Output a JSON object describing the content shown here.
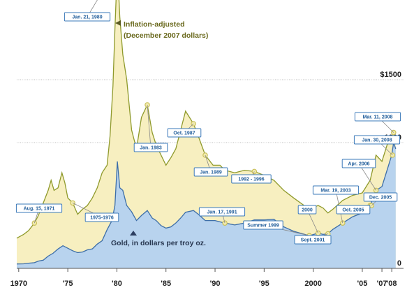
{
  "chart_data": {
    "type": "area",
    "x_ticks": [
      "1970",
      "'75",
      "'80",
      "'85",
      "'90",
      "'95",
      "2000",
      "'05",
      "'07",
      "'08"
    ],
    "y_ticks": [
      "$1500",
      "1000",
      "0"
    ],
    "ylim": [
      0,
      2000
    ],
    "xlim": [
      1969.8,
      2009.2
    ],
    "grid": true,
    "series": [
      {
        "name": "Inflation-adjusted\n(December 2007 dollars)",
        "color": "#8f9a2c",
        "fill": "#f7efc0",
        "x": [
          1969.8,
          1970.5,
          1971.0,
          1971.6,
          1972.0,
          1972.5,
          1973.0,
          1973.3,
          1973.6,
          1974.0,
          1974.4,
          1974.7,
          1975.0,
          1975.5,
          1976.0,
          1976.5,
          1977.0,
          1977.5,
          1978.0,
          1978.5,
          1979.0,
          1979.3,
          1979.6,
          1979.8,
          1980.05,
          1980.3,
          1980.6,
          1981.0,
          1981.5,
          1982.0,
          1982.5,
          1983.1,
          1983.6,
          1984.0,
          1984.5,
          1985.0,
          1985.5,
          1986.0,
          1986.5,
          1987.0,
          1987.8,
          1988.3,
          1989.0,
          1989.8,
          1990.5,
          1991.0,
          1992.0,
          1993.0,
          1994.0,
          1995.0,
          1996.0,
          1997.0,
          1998.0,
          1999.6,
          2000.5,
          2001.0,
          2001.5,
          2002.0,
          2003.0,
          2004.0,
          2005.0,
          2005.8,
          2006.4,
          2007.0,
          2007.6,
          2008.0,
          2008.19,
          2008.4
        ],
        "values": [
          240,
          270,
          300,
          360,
          420,
          520,
          620,
          700,
          620,
          640,
          760,
          680,
          560,
          520,
          430,
          470,
          500,
          560,
          640,
          760,
          820,
          1050,
          1450,
          1900,
          2400,
          2000,
          1700,
          1500,
          1100,
          950,
          1200,
          1300,
          1080,
          980,
          900,
          820,
          880,
          950,
          1100,
          1250,
          1150,
          1050,
          900,
          820,
          820,
          780,
          760,
          780,
          770,
          740,
          700,
          620,
          560,
          470,
          500,
          480,
          440,
          470,
          540,
          580,
          600,
          700,
          900,
          850,
          1000,
          1050,
          1080,
          1000
        ]
      },
      {
        "name": "Gold, in dollars per troy oz.",
        "color": "#3d6ea8",
        "fill": "#b8d3ee",
        "x": [
          1969.8,
          1970.5,
          1971.0,
          1971.6,
          1972.0,
          1972.5,
          1973.0,
          1973.5,
          1974.0,
          1974.5,
          1975.0,
          1975.5,
          1976.0,
          1976.5,
          1977.0,
          1977.5,
          1978.0,
          1978.5,
          1979.0,
          1979.5,
          1979.8,
          1980.05,
          1980.3,
          1980.6,
          1981.0,
          1981.5,
          1982.0,
          1982.5,
          1983.1,
          1983.6,
          1984.0,
          1984.5,
          1985.0,
          1985.5,
          1986.0,
          1986.5,
          1987.0,
          1987.8,
          1988.3,
          1989.0,
          1990.0,
          1991.0,
          1992.0,
          1993.0,
          1994.0,
          1995.0,
          1996.0,
          1997.0,
          1998.0,
          1999.6,
          2000.5,
          2001.0,
          2001.5,
          2002.0,
          2003.0,
          2004.0,
          2005.0,
          2005.8,
          2006.4,
          2007.0,
          2007.6,
          2008.0,
          2008.19,
          2008.4
        ],
        "values": [
          35,
          36,
          41,
          45,
          58,
          65,
          97,
          120,
          154,
          180,
          160,
          140,
          125,
          130,
          147,
          155,
          193,
          220,
          307,
          380,
          500,
          850,
          640,
          620,
          500,
          450,
          380,
          420,
          460,
          400,
          380,
          340,
          320,
          330,
          360,
          400,
          446,
          460,
          430,
          380,
          380,
          360,
          345,
          360,
          385,
          385,
          390,
          330,
          295,
          260,
          280,
          270,
          275,
          310,
          360,
          410,
          440,
          500,
          620,
          650,
          800,
          900,
          1000,
          950
        ]
      }
    ],
    "annotations": [
      {
        "label": "Jan. 21, 1980",
        "x": 1980.05,
        "series": 0
      },
      {
        "label": "Aug. 15, 1971",
        "x": 1971.6,
        "series": 0
      },
      {
        "label": "1975-1976",
        "x": 1975.5,
        "series": 0
      },
      {
        "label": "Jan. 1983",
        "x": 1983.1,
        "series": 0
      },
      {
        "label": "Oct. 1987",
        "x": 1987.8,
        "series": 0
      },
      {
        "label": "Jan. 1989",
        "x": 1989.0,
        "series": 0
      },
      {
        "label": "Jan. 17, 1991",
        "x": 1991.0,
        "series": 1
      },
      {
        "label": "1992 - 1996",
        "x": 1994.0,
        "series": 0
      },
      {
        "label": "Summer 1999",
        "x": 1999.6,
        "series": 1
      },
      {
        "label": "2000",
        "x": 2000.5,
        "series": 1
      },
      {
        "label": "Sept. 2001",
        "x": 2001.5,
        "series": 1
      },
      {
        "label": "Mar. 19, 2003",
        "x": 2003.0,
        "series": 1
      },
      {
        "label": "Oct. 2005",
        "x": 2005.8,
        "series": 1
      },
      {
        "label": "Dec. 2005",
        "x": 2005.95,
        "series": 1
      },
      {
        "label": "Apr. 2006",
        "x": 2006.4,
        "series": 1
      },
      {
        "label": "Jan. 30, 2008",
        "x": 2008.08,
        "series": 1
      },
      {
        "label": "Mar. 11, 2008",
        "x": 2008.19,
        "series": 0
      }
    ]
  }
}
